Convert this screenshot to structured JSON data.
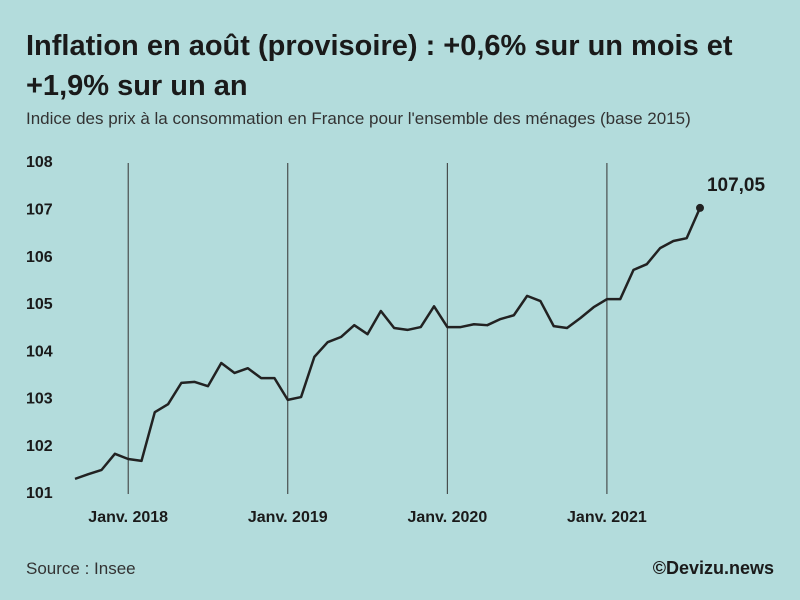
{
  "chart_data": {
    "type": "line",
    "title": "Inflation en août (provisoire) : +0,6% sur un mois et +1,9% sur un an",
    "subtitle": "Indice des prix à la consommation en France pour l'ensemble des ménages (base 2015)",
    "source": "Source : Insee",
    "credit": "©Devizu.news",
    "x": [
      "2017-09",
      "2017-10",
      "2017-11",
      "2017-12",
      "2018-01",
      "2018-02",
      "2018-03",
      "2018-04",
      "2018-05",
      "2018-06",
      "2018-07",
      "2018-08",
      "2018-09",
      "2018-10",
      "2018-11",
      "2018-12",
      "2019-01",
      "2019-02",
      "2019-03",
      "2019-04",
      "2019-05",
      "2019-06",
      "2019-07",
      "2019-08",
      "2019-09",
      "2019-10",
      "2019-11",
      "2019-12",
      "2020-01",
      "2020-02",
      "2020-03",
      "2020-04",
      "2020-05",
      "2020-06",
      "2020-07",
      "2020-08",
      "2020-09",
      "2020-10",
      "2020-11",
      "2020-12",
      "2021-01",
      "2021-02",
      "2021-03",
      "2021-04",
      "2021-05",
      "2021-06",
      "2021-07",
      "2021-08"
    ],
    "series": [
      {
        "name": "Indice des prix",
        "color": "#222222",
        "values": [
          101.32,
          101.42,
          101.51,
          101.85,
          101.74,
          101.7,
          102.73,
          102.9,
          103.35,
          103.37,
          103.28,
          103.77,
          103.56,
          103.66,
          103.45,
          103.45,
          102.99,
          103.05,
          103.9,
          104.21,
          104.32,
          104.57,
          104.38,
          104.87,
          104.51,
          104.47,
          104.53,
          104.97,
          104.53,
          104.53,
          104.59,
          104.57,
          104.7,
          104.78,
          105.19,
          105.08,
          104.55,
          104.51,
          104.72,
          104.95,
          105.12,
          105.12,
          105.74,
          105.86,
          106.2,
          106.35,
          106.41,
          107.05
        ],
        "value_labels": [
          null,
          null,
          null,
          null,
          null,
          null,
          null,
          null,
          null,
          null,
          null,
          null,
          null,
          null,
          null,
          null,
          null,
          null,
          null,
          null,
          null,
          null,
          null,
          null,
          null,
          null,
          null,
          null,
          null,
          null,
          null,
          null,
          null,
          null,
          null,
          null,
          null,
          null,
          null,
          null,
          null,
          null,
          null,
          null,
          null,
          null,
          null,
          "107,05"
        ]
      }
    ],
    "xlim": [
      "2017-09",
      "2021-08"
    ],
    "xticks": [
      {
        "value": "2018-01",
        "label": "Janv. 2018"
      },
      {
        "value": "2019-01",
        "label": "Janv. 2019"
      },
      {
        "value": "2020-01",
        "label": "Janv. 2020"
      },
      {
        "value": "2021-01",
        "label": "Janv. 2021"
      }
    ],
    "ylim": [
      101,
      108
    ],
    "yticks": [
      101,
      102,
      103,
      104,
      105,
      106,
      107,
      108
    ],
    "grid": "x"
  }
}
